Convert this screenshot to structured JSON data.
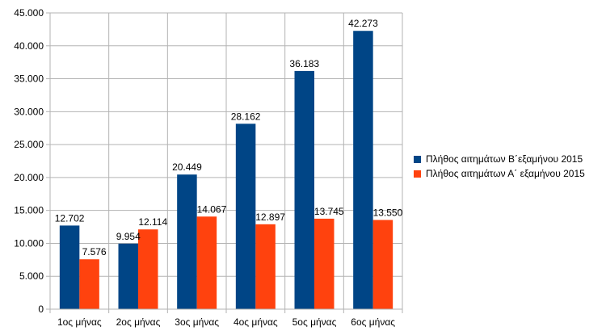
{
  "chart_data": {
    "type": "bar",
    "categories": [
      "1ος μήνας",
      "2ος μήνας",
      "3ος μήνας",
      "4ος μήνας",
      "5ος μήνας",
      "6ος μήνας"
    ],
    "series": [
      {
        "name": "Πλήθος αιτημάτων Β΄εξαμήνου 2015",
        "color": "#004586",
        "values": [
          12702,
          9954,
          20449,
          28162,
          36183,
          42273
        ],
        "labels": [
          "12.702",
          "9.954",
          "20.449",
          "28.162",
          "36.183",
          "42.273"
        ]
      },
      {
        "name": "Πλήθος αιτημάτων Α΄ εξαμήνου 2015",
        "color": "#ff420e",
        "values": [
          7576,
          12114,
          14067,
          12897,
          13745,
          13550
        ],
        "labels": [
          "7.576",
          "12.114",
          "14.067",
          "12.897",
          "13.745",
          "13.550"
        ]
      }
    ],
    "yticks": [
      0,
      5000,
      10000,
      15000,
      20000,
      25000,
      30000,
      35000,
      40000,
      45000
    ],
    "ytick_labels": [
      "0",
      "5.000",
      "10.000",
      "15.000",
      "20.000",
      "25.000",
      "30.000",
      "35.000",
      "40.000",
      "45.000"
    ],
    "ylim": [
      0,
      45000
    ],
    "grid": true,
    "legend_position": "right"
  }
}
